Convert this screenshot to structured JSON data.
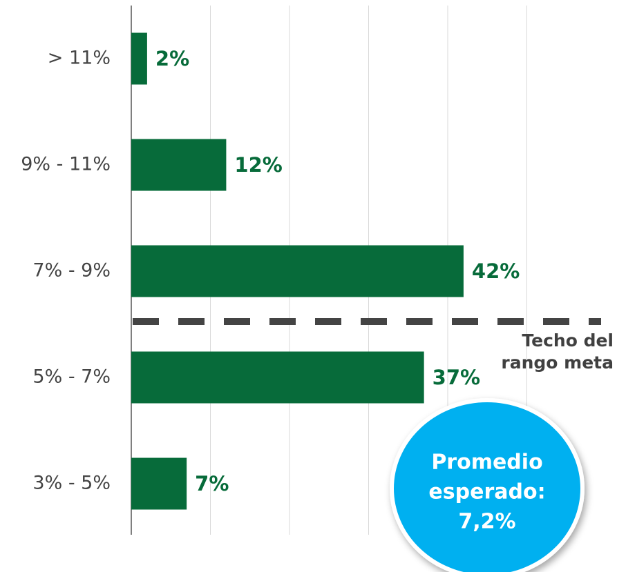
{
  "chart_data": {
    "type": "bar",
    "orientation": "horizontal",
    "categories": [
      "> 11%",
      "9% - 11%",
      "7% - 9%",
      "5% - 7%",
      "3% - 5%"
    ],
    "values": [
      2,
      12,
      42,
      37,
      7
    ],
    "value_labels": [
      "2%",
      "12%",
      "42%",
      "37%",
      "7%"
    ],
    "color": "#076b3a",
    "xlim": [
      0,
      60
    ],
    "xticks": [
      0,
      10,
      20,
      30,
      40,
      50
    ],
    "grid": true,
    "threshold_label": [
      "Techo del",
      "rango meta"
    ],
    "callout": [
      "Promedio",
      "esperado:",
      "7,2%"
    ]
  }
}
